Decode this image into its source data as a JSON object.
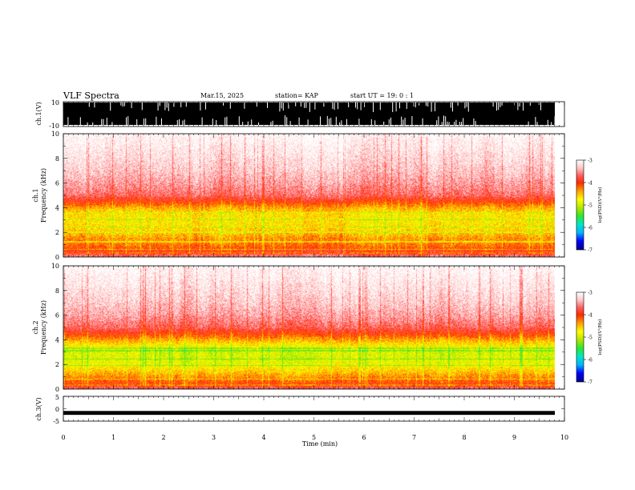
{
  "header": {
    "title": "VLF Spectra",
    "date": "Mar.15, 2025",
    "station": "station= KAP",
    "start_ut": "start  UT =   19: 0  : 1"
  },
  "colorbar_label": "log(PSD)(V²/Hz)",
  "palette": [
    "#00008c",
    "#0000ff",
    "#00b4ff",
    "#00e6c8",
    "#2ee62e",
    "#b4e600",
    "#ffff00",
    "#ffa000",
    "#ff2a00",
    "#ff6060",
    "#ffc8c8",
    "#ffffff"
  ],
  "chart_data": [
    {
      "type": "line",
      "panel": "ch1-waveform",
      "ylabel": "ch.1(V)",
      "ylim": [
        -10,
        10
      ],
      "yticks": [
        10,
        -10
      ],
      "xlim": [
        0,
        10
      ],
      "description_values": {
        "envelope_min": -10,
        "envelope_max": 10
      }
    },
    {
      "type": "heatmap",
      "panel": "ch1-spectrogram",
      "ylabel_top": "ch.1",
      "ylabel": "Frequency  (kHz)",
      "ylim": [
        0,
        10
      ],
      "yticks": [
        0,
        2,
        4,
        6,
        8,
        10
      ],
      "xlim": [
        0,
        10
      ],
      "data_end_min": 9.8,
      "colorbar": {
        "range": [
          -7,
          -3
        ],
        "ticks": [
          -3,
          -4,
          -5,
          -6,
          -7
        ]
      },
      "profile_kHz": [
        0,
        0.5,
        1,
        1.5,
        2,
        2.5,
        3,
        3.5,
        4,
        4.5,
        5,
        6,
        7,
        8,
        9,
        10
      ],
      "profile_logpsd": [
        -3.6,
        -4.0,
        -4.25,
        -4.35,
        -4.55,
        -4.65,
        -4.7,
        -4.65,
        -4.4,
        -4.0,
        -3.65,
        -3.45,
        -3.3,
        -3.2,
        -3.1,
        -3.0
      ]
    },
    {
      "type": "heatmap",
      "panel": "ch2-spectrogram",
      "ylabel_top": "ch.2",
      "ylabel": "Frequency  (kHz)",
      "ylim": [
        0,
        10
      ],
      "yticks": [
        0,
        2,
        4,
        6,
        8,
        10
      ],
      "xlim": [
        0,
        10
      ],
      "data_end_min": 9.8,
      "colorbar": {
        "range": [
          -7,
          -3
        ],
        "ticks": [
          -3,
          -4,
          -5,
          -6,
          -7
        ]
      },
      "profile_kHz": [
        0,
        0.5,
        1,
        1.5,
        2,
        2.5,
        3,
        3.5,
        4,
        4.5,
        5,
        6,
        7,
        8,
        9,
        10
      ],
      "profile_logpsd": [
        -3.7,
        -4.1,
        -4.35,
        -4.6,
        -4.85,
        -4.95,
        -4.95,
        -4.75,
        -4.4,
        -4.0,
        -3.7,
        -3.45,
        -3.3,
        -3.2,
        -3.1,
        -3.0
      ]
    },
    {
      "type": "line",
      "panel": "ch3-waveform",
      "ylabel": "ch.3(V)",
      "ylim": [
        -5,
        5
      ],
      "yticks": [
        5,
        0,
        -5
      ],
      "xlim": [
        0,
        10
      ],
      "xlabel": "Time  (min)",
      "xticks": [
        0,
        1,
        2,
        3,
        4,
        5,
        6,
        7,
        8,
        9,
        10
      ],
      "description_values": {
        "level": -1.2,
        "band_min": -1.5,
        "band_max": -0.9
      }
    }
  ]
}
